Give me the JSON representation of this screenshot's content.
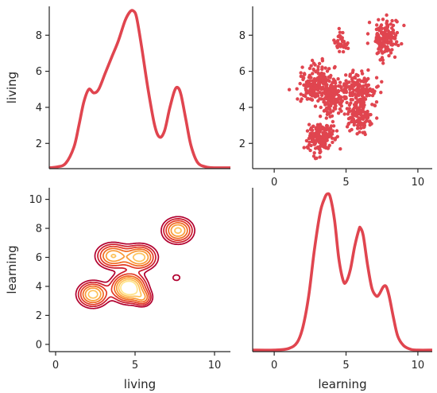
{
  "chart_data": [
    {
      "panel": "top-left",
      "type": "line",
      "xlim": [
        0,
        11
      ],
      "ylim": [
        0.6,
        9.6
      ],
      "yticks": [
        2,
        4,
        6,
        8
      ],
      "ylabel": "living",
      "color": "#e0454f",
      "x": [
        0,
        0.5,
        1.0,
        1.5,
        1.8,
        2.1,
        2.4,
        2.7,
        3.0,
        3.4,
        3.8,
        4.2,
        4.6,
        4.9,
        5.1,
        5.3,
        5.6,
        6.0,
        6.4,
        6.7,
        7.0,
        7.3,
        7.6,
        7.8,
        8.0,
        8.3,
        8.6,
        9.0,
        9.5,
        10.0,
        11.0
      ],
      "values": [
        0.65,
        0.7,
        0.9,
        1.8,
        3.0,
        4.3,
        5.0,
        4.8,
        5.0,
        5.9,
        6.8,
        7.7,
        8.8,
        9.3,
        9.35,
        9.0,
        7.4,
        5.0,
        3.0,
        2.35,
        2.7,
        3.9,
        4.9,
        5.1,
        4.7,
        3.3,
        1.9,
        0.95,
        0.7,
        0.65,
        0.65
      ]
    },
    {
      "panel": "top-right",
      "type": "scatter",
      "xlim": [
        -1.5,
        11
      ],
      "ylim": [
        0.6,
        9.6
      ],
      "xticks": [
        0,
        5,
        10
      ],
      "yticks": [
        2,
        4,
        6,
        8
      ],
      "color": "#e0454f",
      "clusters": [
        {
          "cx": 3.2,
          "cy": 2.3,
          "sx": 0.45,
          "sy": 0.4,
          "n": 170
        },
        {
          "cx": 3.0,
          "cy": 5.3,
          "sx": 0.65,
          "sy": 0.55,
          "n": 190
        },
        {
          "cx": 4.1,
          "cy": 4.5,
          "sx": 0.45,
          "sy": 0.5,
          "n": 120
        },
        {
          "cx": 5.7,
          "cy": 5.0,
          "sx": 0.7,
          "sy": 0.45,
          "n": 150
        },
        {
          "cx": 6.0,
          "cy": 3.5,
          "sx": 0.5,
          "sy": 0.45,
          "n": 130
        },
        {
          "cx": 4.7,
          "cy": 7.6,
          "sx": 0.25,
          "sy": 0.3,
          "n": 35
        },
        {
          "cx": 7.8,
          "cy": 7.8,
          "sx": 0.45,
          "sy": 0.55,
          "n": 150
        }
      ]
    },
    {
      "panel": "bottom-left",
      "type": "contour",
      "xlim": [
        -0.4,
        11
      ],
      "ylim": [
        -0.5,
        10.8
      ],
      "xticks": [
        0,
        5,
        10
      ],
      "yticks": [
        0,
        2,
        4,
        6,
        8,
        10
      ],
      "xlabel": "living",
      "ylabel": "learning",
      "levels": [
        0.12,
        0.2,
        0.3,
        0.42,
        0.55,
        0.7,
        0.85
      ],
      "colors": [
        "#b1002f",
        "#cc1b2b",
        "#e33a24",
        "#f06a22",
        "#f99b38",
        "#fdc35c",
        "#ffe48a"
      ],
      "components": [
        {
          "cx": 2.35,
          "cy": 3.45,
          "sx": 0.55,
          "sy": 0.5,
          "w": 0.8
        },
        {
          "cx": 4.6,
          "cy": 3.9,
          "sx": 0.6,
          "sy": 0.55,
          "w": 1.2
        },
        {
          "cx": 5.5,
          "cy": 3.2,
          "sx": 0.35,
          "sy": 0.35,
          "w": 0.45
        },
        {
          "cx": 3.6,
          "cy": 6.1,
          "sx": 0.6,
          "sy": 0.5,
          "w": 0.7
        },
        {
          "cx": 5.3,
          "cy": 6.0,
          "sx": 0.6,
          "sy": 0.5,
          "w": 0.8
        },
        {
          "cx": 7.7,
          "cy": 7.85,
          "sx": 0.55,
          "sy": 0.5,
          "w": 0.75
        },
        {
          "cx": 7.6,
          "cy": 4.6,
          "sx": 0.28,
          "sy": 0.25,
          "w": 0.16
        }
      ]
    },
    {
      "panel": "bottom-right",
      "type": "line",
      "xlim": [
        -1.5,
        11
      ],
      "ylim": [
        0,
        10.6
      ],
      "xticks": [
        0,
        5,
        10
      ],
      "xlabel": "learning",
      "color": "#e0454f",
      "x": [
        -1.5,
        0,
        1.0,
        1.6,
        2.0,
        2.4,
        2.8,
        3.2,
        3.5,
        3.7,
        3.9,
        4.2,
        4.5,
        4.8,
        5.0,
        5.3,
        5.6,
        5.9,
        6.0,
        6.2,
        6.5,
        6.8,
        7.1,
        7.3,
        7.6,
        7.8,
        8.0,
        8.3,
        8.6,
        9.0,
        9.5,
        10.0,
        11.0
      ],
      "values": [
        0.1,
        0.1,
        0.2,
        0.6,
        1.6,
        3.6,
        6.6,
        9.0,
        9.9,
        10.2,
        10.0,
        8.5,
        6.0,
        4.6,
        4.5,
        5.3,
        6.8,
        7.9,
        8.0,
        7.5,
        5.6,
        4.1,
        3.6,
        3.7,
        4.2,
        4.2,
        3.6,
        2.2,
        1.0,
        0.4,
        0.15,
        0.1,
        0.1
      ]
    }
  ]
}
